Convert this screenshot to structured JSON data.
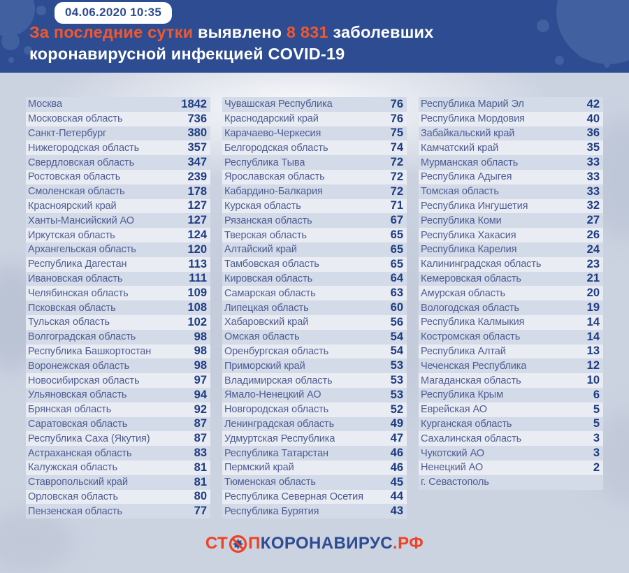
{
  "header": {
    "date_badge": "04.06.2020 10:35",
    "headline": {
      "segments": [
        {
          "text": "За последние сутки",
          "accent": true
        },
        {
          "text": " выявлено ",
          "accent": false
        },
        {
          "text": "8 831",
          "accent": true
        },
        {
          "text": " заболевших коронавирусной инфекцией COVID-19",
          "accent": false
        }
      ]
    }
  },
  "chart_data": {
    "type": "table",
    "title": "За последние сутки выявлено 8 831 заболевших коронавирусной инфекцией COVID-19",
    "total_new_cases": "8 831",
    "date": "04.06.2020 10:35",
    "columns": [
      {
        "rows": [
          [
            "Москва",
            "1842"
          ],
          [
            "Московская область",
            "736"
          ],
          [
            "Санкт-Петербург",
            "380"
          ],
          [
            "Нижегородская область",
            "357"
          ],
          [
            "Свердловская область",
            "347"
          ],
          [
            "Ростовская область",
            "239"
          ],
          [
            "Смоленская область",
            "178"
          ],
          [
            "Красноярский край",
            "127"
          ],
          [
            "Ханты-Мансийский АО",
            "127"
          ],
          [
            "Иркутская область",
            "124"
          ],
          [
            "Архангельская область",
            "120"
          ],
          [
            "Республика Дагестан",
            "113"
          ],
          [
            "Ивановская область",
            "111"
          ],
          [
            "Челябинская область",
            "109"
          ],
          [
            "Псковская область",
            "108"
          ],
          [
            "Тульская область",
            "102"
          ],
          [
            "Волгоградская область",
            "98"
          ],
          [
            "Республика Башкортостан",
            "98"
          ],
          [
            "Воронежская область",
            "98"
          ],
          [
            "Новосибирская область",
            "97"
          ],
          [
            "Ульяновская область",
            "94"
          ],
          [
            "Брянская область",
            "92"
          ],
          [
            "Саратовская область",
            "87"
          ],
          [
            "Республика Саха (Якутия)",
            "87"
          ],
          [
            "Астраханская область",
            "83"
          ],
          [
            "Калужская область",
            "81"
          ],
          [
            "Ставропольский край",
            "81"
          ],
          [
            "Орловская область",
            "80"
          ],
          [
            "Пензенская область",
            "77"
          ]
        ]
      },
      {
        "rows": [
          [
            "Чувашская Республика",
            "76"
          ],
          [
            "Краснодарский край",
            "76"
          ],
          [
            "Карачаево-Черкесия",
            "75"
          ],
          [
            "Белгородская область",
            "74"
          ],
          [
            "Республика Тыва",
            "72"
          ],
          [
            "Ярославская область",
            "72"
          ],
          [
            "Кабардино-Балкария",
            "72"
          ],
          [
            "Курская область",
            "71"
          ],
          [
            "Рязанская область",
            "67"
          ],
          [
            "Тверская область",
            "65"
          ],
          [
            "Алтайский край",
            "65"
          ],
          [
            "Тамбовская область",
            "65"
          ],
          [
            "Кировская область",
            "64"
          ],
          [
            "Самарская область",
            "63"
          ],
          [
            "Липецкая область",
            "60"
          ],
          [
            "Хабаровский край",
            "56"
          ],
          [
            "Омская область",
            "54"
          ],
          [
            "Оренбургская область",
            "54"
          ],
          [
            "Приморский край",
            "53"
          ],
          [
            "Владимирская область",
            "53"
          ],
          [
            "Ямало-Ненецкий АО",
            "53"
          ],
          [
            "Новгородская область",
            "52"
          ],
          [
            "Ленинградская область",
            "49"
          ],
          [
            "Удмуртская Республика",
            "47"
          ],
          [
            "Республика Татарстан",
            "46"
          ],
          [
            "Пермский край",
            "46"
          ],
          [
            "Тюменская область",
            "45"
          ],
          [
            "Республика Северная Осетия",
            "44"
          ],
          [
            "Республика Бурятия",
            "43"
          ]
        ]
      },
      {
        "rows": [
          [
            "Республика Марий Эл",
            "42"
          ],
          [
            "Республика Мордовия",
            "40"
          ],
          [
            "Забайкальский край",
            "36"
          ],
          [
            "Камчатский край",
            "35"
          ],
          [
            "Мурманская область",
            "33"
          ],
          [
            "Республика Адыгея",
            "33"
          ],
          [
            "Томская область",
            "33"
          ],
          [
            "Республика Ингушетия",
            "32"
          ],
          [
            "Республика Коми",
            "27"
          ],
          [
            "Республика Хакасия",
            "26"
          ],
          [
            "Республика Карелия",
            "24"
          ],
          [
            "Калининградская область",
            "23"
          ],
          [
            "Кемеровская область",
            "21"
          ],
          [
            "Амурская область",
            "20"
          ],
          [
            "Вологодская область",
            "19"
          ],
          [
            "Республика Калмыкия",
            "14"
          ],
          [
            "Костромская область",
            "14"
          ],
          [
            "Республика Алтай",
            "13"
          ],
          [
            "Чеченская Республика",
            "12"
          ],
          [
            "Магаданская область",
            "10"
          ],
          [
            "Республика Крым",
            "6"
          ],
          [
            "Еврейская АО",
            "5"
          ],
          [
            "Курганская область",
            "5"
          ],
          [
            "Сахалинская область",
            "3"
          ],
          [
            "Чукотский АО",
            "3"
          ],
          [
            "Ненецкий АО",
            "2"
          ],
          [
            "г. Севастополь",
            ""
          ]
        ]
      }
    ]
  },
  "footer": {
    "logo": {
      "stop_prefix": "СТ",
      "stop_suffix": "П",
      "main": "КОРОНАВИРУС",
      "tld": ".РФ",
      "icon": "no-virus-stop-sign"
    }
  },
  "colors": {
    "banner_blue": "#2d4c92",
    "accent_orange": "#f0582e",
    "logo_orange": "#ee4224",
    "number_navy": "#1e3c82",
    "region_text": "#4e5d92",
    "row_stripe": "#d3dae8",
    "row_light": "#e9ecf3",
    "page_background": "#cbd2e0"
  }
}
